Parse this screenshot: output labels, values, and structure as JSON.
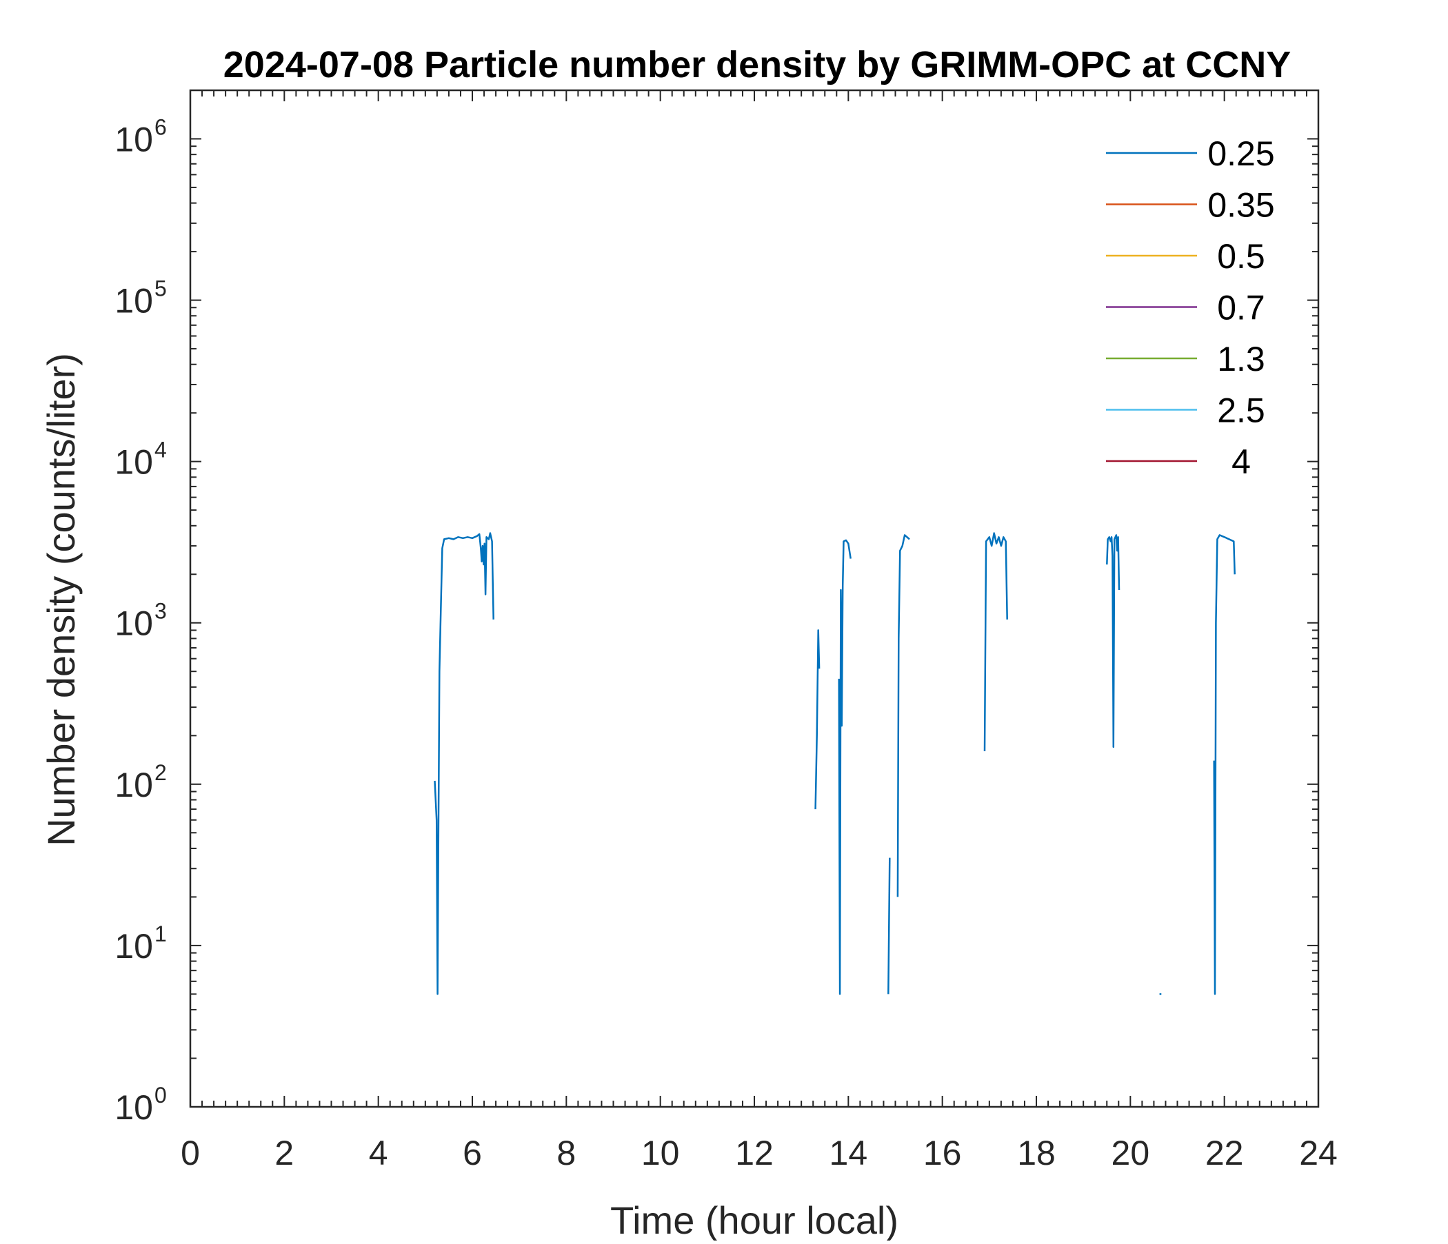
{
  "chart_data": {
    "type": "line",
    "title": "2024-07-08 Particle number density by GRIMM-OPC at CCNY",
    "xlabel": "Time (hour local)",
    "ylabel": "Number density (counts/liter)",
    "xlim": [
      0,
      24
    ],
    "ylim": [
      1,
      2000000
    ],
    "yscale": "log",
    "x_ticks": [
      0,
      2,
      4,
      6,
      8,
      10,
      12,
      14,
      16,
      18,
      20,
      22,
      24
    ],
    "x_tick_labels": [
      "0",
      "2",
      "4",
      "6",
      "8",
      "10",
      "12",
      "14",
      "16",
      "18",
      "20",
      "22",
      "24"
    ],
    "y_ticks": [
      1,
      10,
      100,
      1000,
      10000,
      100000,
      1000000
    ],
    "y_tick_base": "10",
    "y_tick_exponents": [
      "0",
      "1",
      "2",
      "3",
      "4",
      "5",
      "6"
    ],
    "grid": false,
    "legend_position": "top-right",
    "series": [
      {
        "name": "0.25",
        "color": "#0072BD",
        "segments": [
          [
            [
              5.2,
              105
            ],
            [
              5.24,
              60
            ],
            [
              5.26,
              5
            ],
            [
              5.28,
              55
            ],
            [
              5.3,
              500
            ],
            [
              5.33,
              1200
            ],
            [
              5.36,
              2900
            ],
            [
              5.4,
              3300
            ],
            [
              5.5,
              3350
            ],
            [
              5.6,
              3300
            ],
            [
              5.7,
              3400
            ],
            [
              5.8,
              3350
            ],
            [
              5.9,
              3400
            ],
            [
              6.0,
              3350
            ],
            [
              6.1,
              3450
            ],
            [
              6.15,
              3550
            ],
            [
              6.18,
              2900
            ],
            [
              6.2,
              2400
            ],
            [
              6.22,
              3000
            ],
            [
              6.24,
              2300
            ],
            [
              6.26,
              3100
            ],
            [
              6.28,
              1500
            ],
            [
              6.3,
              3400
            ],
            [
              6.35,
              3300
            ],
            [
              6.38,
              3600
            ],
            [
              6.42,
              3200
            ],
            [
              6.45,
              1050
            ]
          ],
          [
            [
              13.3,
              70
            ],
            [
              13.33,
              200
            ],
            [
              13.36,
              900
            ],
            [
              13.38,
              520
            ]
          ],
          [
            [
              13.8,
              450
            ],
            [
              13.82,
              5
            ],
            [
              13.84,
              1600
            ],
            [
              13.86,
              230
            ],
            [
              13.88,
              1700
            ],
            [
              13.9,
              3200
            ],
            [
              13.95,
              3250
            ],
            [
              14.0,
              3100
            ],
            [
              14.05,
              2500
            ]
          ],
          [
            [
              14.85,
              5
            ],
            [
              14.88,
              35
            ]
          ],
          [
            [
              15.05,
              20
            ],
            [
              15.07,
              800
            ],
            [
              15.1,
              2800
            ],
            [
              15.15,
              3000
            ],
            [
              15.2,
              3500
            ],
            [
              15.25,
              3400
            ],
            [
              15.3,
              3300
            ]
          ],
          [
            [
              16.9,
              160
            ],
            [
              16.93,
              3200
            ],
            [
              17.0,
              3400
            ],
            [
              17.05,
              3000
            ],
            [
              17.1,
              3600
            ],
            [
              17.15,
              3100
            ],
            [
              17.2,
              3400
            ],
            [
              17.25,
              3000
            ],
            [
              17.3,
              3400
            ],
            [
              17.35,
              3200
            ],
            [
              17.38,
              1050
            ]
          ],
          [
            [
              19.5,
              2300
            ],
            [
              19.52,
              3300
            ],
            [
              19.55,
              3400
            ],
            [
              19.58,
              3200
            ],
            [
              19.6,
              3400
            ],
            [
              19.62,
              2600
            ],
            [
              19.64,
              170
            ],
            [
              19.66,
              3300
            ],
            [
              19.7,
              3500
            ],
            [
              19.72,
              2800
            ],
            [
              19.74,
              3400
            ],
            [
              19.76,
              1600
            ]
          ],
          [
            [
              20.62,
              5
            ],
            [
              20.66,
              5
            ]
          ],
          [
            [
              21.78,
              140
            ],
            [
              21.8,
              5
            ],
            [
              21.82,
              1000
            ],
            [
              21.85,
              3300
            ],
            [
              21.9,
              3500
            ],
            [
              22.0,
              3400
            ],
            [
              22.1,
              3300
            ],
            [
              22.2,
              3200
            ],
            [
              22.22,
              2000
            ]
          ]
        ]
      },
      {
        "name": "0.35",
        "color": "#D95319",
        "segments": []
      },
      {
        "name": "0.5",
        "color": "#EDB120",
        "segments": []
      },
      {
        "name": "0.7",
        "color": "#7E2F8E",
        "segments": []
      },
      {
        "name": "1.3",
        "color": "#77AC30",
        "segments": []
      },
      {
        "name": "2.5",
        "color": "#4DBEEE",
        "segments": []
      },
      {
        "name": "4",
        "color": "#A2142F",
        "segments": []
      }
    ]
  }
}
